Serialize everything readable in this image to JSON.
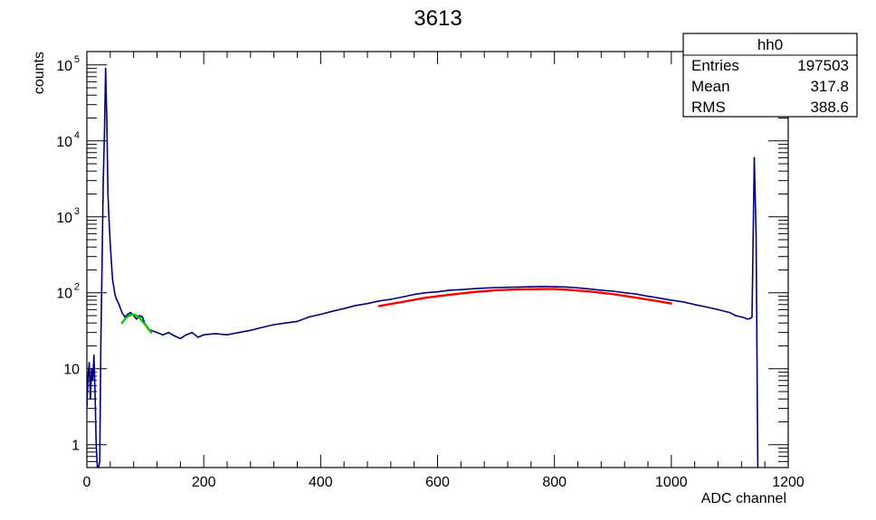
{
  "chart_data": {
    "type": "line",
    "title": "3613",
    "xlabel": "ADC channel",
    "ylabel": "counts",
    "xlim": [
      0,
      1200
    ],
    "ylim": [
      0.5,
      150000
    ],
    "y_scale": "log",
    "grid": false,
    "x_ticks": [
      {
        "value": 0,
        "label": "0"
      },
      {
        "value": 200,
        "label": "200"
      },
      {
        "value": 400,
        "label": "400"
      },
      {
        "value": 600,
        "label": "600"
      },
      {
        "value": 800,
        "label": "800"
      },
      {
        "value": 1000,
        "label": "1000"
      },
      {
        "value": 1200,
        "label": "1200"
      }
    ],
    "y_ticks": [
      {
        "value": 1,
        "base": "1",
        "exp": ""
      },
      {
        "value": 10,
        "base": "10",
        "exp": ""
      },
      {
        "value": 100,
        "base": "10",
        "exp": "2"
      },
      {
        "value": 1000,
        "base": "10",
        "exp": "3"
      },
      {
        "value": 10000,
        "base": "10",
        "exp": "4"
      },
      {
        "value": 100000,
        "base": "10",
        "exp": "5"
      }
    ],
    "series": [
      {
        "color": "#000080",
        "x": [
          0,
          2,
          4,
          6,
          8,
          10,
          12,
          14,
          16,
          18,
          20,
          22,
          24,
          26,
          28,
          30,
          32,
          34,
          36,
          38,
          40,
          42,
          44,
          46,
          48,
          50,
          55,
          60,
          65,
          70,
          75,
          80,
          85,
          90,
          95,
          100,
          105,
          110,
          120,
          130,
          140,
          150,
          160,
          170,
          180,
          190,
          200,
          220,
          240,
          260,
          280,
          300,
          320,
          340,
          360,
          380,
          400,
          420,
          440,
          460,
          480,
          500,
          520,
          540,
          560,
          580,
          600,
          620,
          640,
          660,
          680,
          700,
          720,
          740,
          760,
          780,
          800,
          820,
          840,
          860,
          880,
          900,
          920,
          940,
          960,
          980,
          1000,
          1020,
          1040,
          1060,
          1080,
          1100,
          1110,
          1120,
          1125,
          1130,
          1135,
          1138,
          1140,
          1142,
          1145,
          1148
        ],
        "values": [
          3,
          8,
          12,
          4,
          10,
          7,
          15,
          5,
          1,
          0.5,
          0.5,
          0.6,
          25,
          250,
          3000,
          12000,
          90000,
          20000,
          2000,
          900,
          450,
          250,
          150,
          120,
          95,
          85,
          70,
          55,
          48,
          52,
          55,
          50,
          45,
          50,
          48,
          38,
          33,
          32,
          30,
          28,
          30,
          27,
          25,
          28,
          30,
          26,
          28,
          29,
          28,
          30,
          32,
          35,
          38,
          40,
          42,
          48,
          52,
          57,
          62,
          68,
          72,
          78,
          82,
          88,
          95,
          100,
          103,
          108,
          110,
          113,
          115,
          117,
          118,
          119,
          120,
          121,
          120,
          119,
          116,
          112,
          108,
          105,
          100,
          96,
          90,
          85,
          80,
          76,
          70,
          65,
          60,
          55,
          50,
          48,
          47,
          45,
          46,
          48,
          600,
          6000,
          600,
          0.5
        ]
      },
      {
        "name": "",
        "color": "#00cc00",
        "x": [
          60,
          65,
          70,
          75,
          80,
          85,
          90,
          95,
          100,
          105,
          110
        ],
        "values": [
          40,
          45,
          49,
          51,
          52,
          50,
          47,
          42,
          38,
          34,
          30
        ]
      },
      {
        "name": "",
        "color": "#ff0000",
        "x": [
          500,
          540,
          580,
          620,
          660,
          700,
          740,
          780,
          800,
          820,
          860,
          900,
          940,
          980,
          1000
        ],
        "values": [
          67,
          76,
          86,
          94,
          102,
          108,
          111,
          112,
          112,
          110,
          104,
          96,
          86,
          77,
          72
        ]
      }
    ]
  },
  "stats_box": {
    "title": "hh0",
    "rows": [
      {
        "label": "Entries",
        "value": "197503"
      },
      {
        "label": "Mean",
        "value": "317.8"
      },
      {
        "label": "RMS",
        "value": "388.6"
      }
    ]
  }
}
